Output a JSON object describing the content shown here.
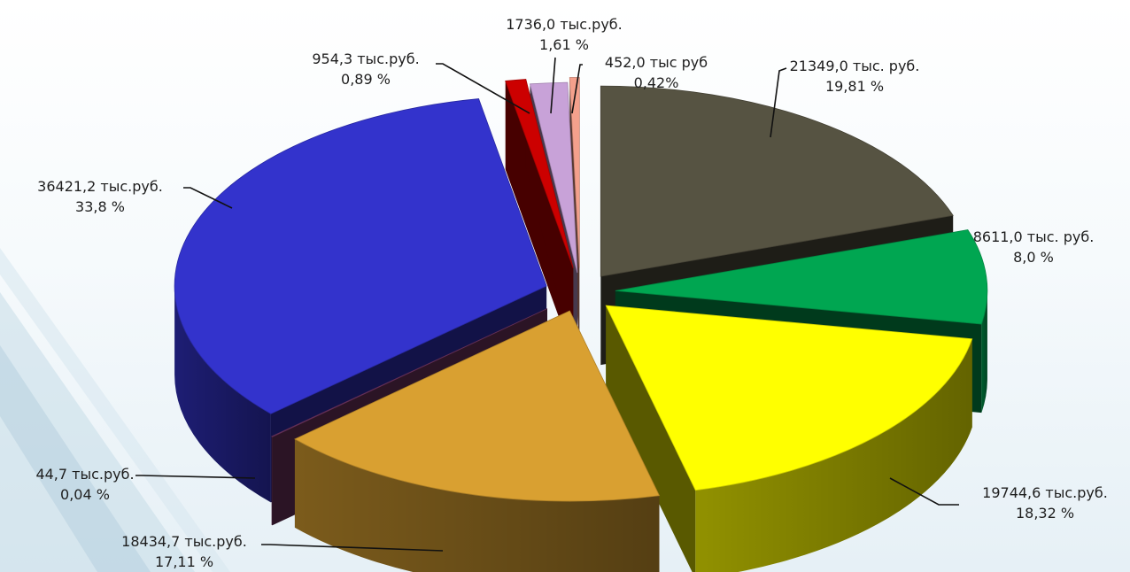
{
  "chart_data": {
    "type": "pie",
    "title": "",
    "legend": "none",
    "slices": [
      {
        "value": 21349.0,
        "percent": 19.81,
        "value_label": "21349,0 тыс. руб.",
        "percent_label": "19,81 %",
        "color": "#565342"
      },
      {
        "value": 8611.0,
        "percent": 8.0,
        "value_label": "8611,0 тыс. руб.",
        "percent_label": "8,0 %",
        "color": "#00a651"
      },
      {
        "value": 19744.6,
        "percent": 18.32,
        "value_label": "19744,6 тыс.руб.",
        "percent_label": "18,32 %",
        "color": "#ffff00"
      },
      {
        "value": 18434.7,
        "percent": 17.11,
        "value_label": "18434,7 тыс.руб.",
        "percent_label": "17,11 %",
        "color": "#d9a031"
      },
      {
        "value": 44.7,
        "percent": 0.04,
        "value_label": "44,7 тыс.руб.",
        "percent_label": "0,04  %",
        "color": "#7a3a6a"
      },
      {
        "value": 36421.2,
        "percent": 33.8,
        "value_label": "36421,2 тыс.руб.",
        "percent_label": "33,8 %",
        "color": "#3333cc"
      },
      {
        "value": 954.3,
        "percent": 0.89,
        "value_label": "954,3 тыс.руб.",
        "percent_label": "0,89 %",
        "color": "#cc0000"
      },
      {
        "value": 1736.0,
        "percent": 1.61,
        "value_label": "1736,0 тыс.руб.",
        "percent_label": "1,61 %",
        "color": "#c8a2d8"
      },
      {
        "value": 452.0,
        "percent": 0.42,
        "value_label": "452,0 тыс руб",
        "percent_label": "0,42%",
        "color": "#f4a08c"
      }
    ]
  }
}
